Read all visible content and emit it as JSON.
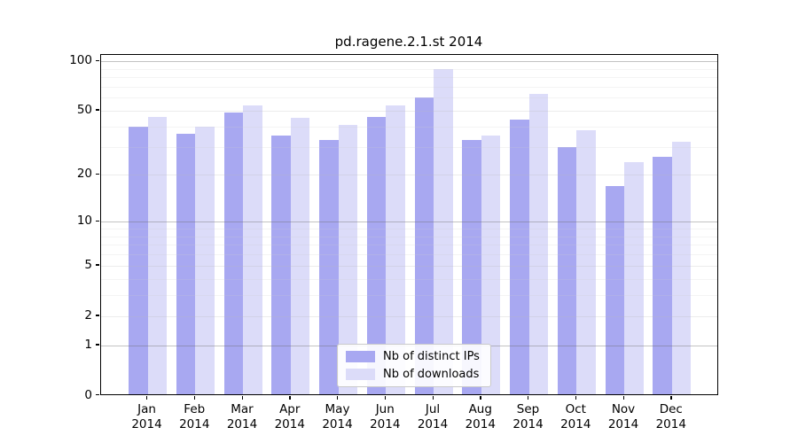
{
  "title": "pd.ragene.2.1.st 2014",
  "chart_data": {
    "type": "bar",
    "title": "pd.ragene.2.1.st 2014",
    "categories": [
      "Jan 2014",
      "Feb 2014",
      "Mar 2014",
      "Apr 2014",
      "May 2014",
      "Jun 2014",
      "Jul 2014",
      "Aug 2014",
      "Sep 2014",
      "Oct 2014",
      "Nov 2014",
      "Dec 2014"
    ],
    "series": [
      {
        "name": "Nb of distinct IPs",
        "color": "#a8a8f1",
        "values": [
          40,
          36,
          49,
          35,
          33,
          46,
          60,
          33,
          44,
          30,
          17,
          26
        ]
      },
      {
        "name": "Nb of downloads",
        "color": "#dcdcf9",
        "values": [
          46,
          40,
          54,
          45,
          41,
          54,
          89,
          35,
          63,
          38,
          24,
          32
        ]
      }
    ],
    "xlabel": "",
    "ylabel": "",
    "y_axis_scale": "log1p",
    "y_ticks": [
      0,
      1,
      2,
      5,
      10,
      20,
      50,
      100
    ],
    "ylim": [
      0,
      110
    ],
    "grid": true,
    "legend_position": "lower center"
  },
  "colors": {
    "bar_distinct_ips": "#a8a8f1",
    "bar_downloads": "#dcdcf9",
    "axis": "#000000",
    "grid_major_emphasis": "#b2b2b2",
    "grid_major": "#e9e9e9",
    "grid_minor": "#f3f3f3",
    "legend_border": "#c9c9c9"
  }
}
